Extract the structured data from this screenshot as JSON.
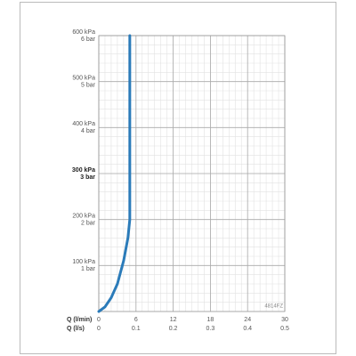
{
  "chart_data": {
    "type": "line",
    "x_axis_label": "Q (l/min)",
    "x2_axis_label": "Q (l/s)",
    "annotation": "4814FZ",
    "x": [
      0,
      1,
      2,
      3,
      4,
      4.7,
      5,
      5
    ],
    "series": [
      {
        "color": "#2b7bb9",
        "values": [
          0,
          10,
          30,
          60,
          110,
          160,
          200,
          600
        ]
      }
    ],
    "xlim": [
      0,
      30
    ],
    "xticks": [
      0,
      6,
      12,
      18,
      24,
      30
    ],
    "x2lim": [
      0,
      0.5
    ],
    "x2ticks": [
      0,
      0.1,
      0.2,
      0.3,
      0.4,
      0.5
    ],
    "ylim": [
      0,
      600
    ],
    "yticks": [
      {
        "value": 100,
        "label": "100 kPa"
      },
      {
        "value": 200,
        "label": "200 kPa"
      },
      {
        "value": 300,
        "label": "300 kPa"
      },
      {
        "value": 400,
        "label": "400 kPa"
      },
      {
        "value": 500,
        "label": "500 kPa"
      },
      {
        "value": 600,
        "label": "600 kPa"
      }
    ],
    "y2lim": [
      0,
      6
    ],
    "y2ticks": [
      {
        "value": 1,
        "label": "1 bar"
      },
      {
        "value": 2,
        "label": "2 bar"
      },
      {
        "value": 3,
        "label": "3 bar"
      },
      {
        "value": 4,
        "label": "4 bar"
      },
      {
        "value": 5,
        "label": "5 bar"
      },
      {
        "value": 6,
        "label": "6 bar"
      }
    ],
    "bold_ytick_value": 300,
    "grid": true,
    "x_minor_step": 1,
    "y_minor_step": 20
  }
}
